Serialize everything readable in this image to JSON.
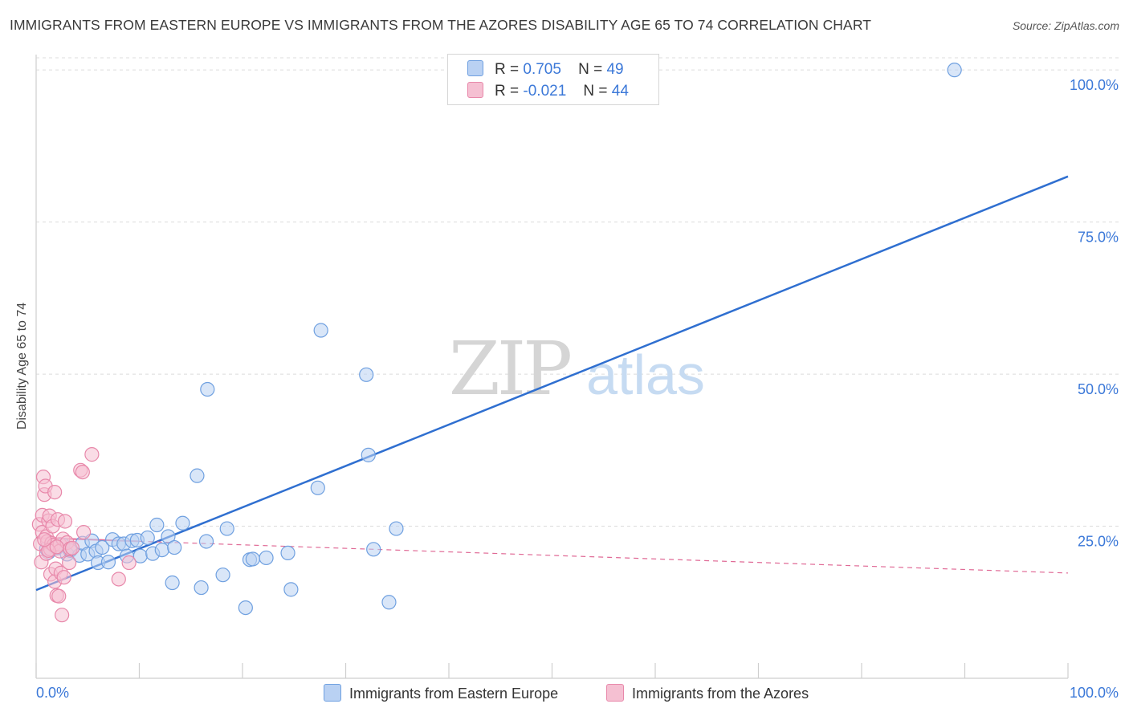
{
  "chart_data": {
    "type": "scatter",
    "title": "IMMIGRANTS FROM EASTERN EUROPE VS IMMIGRANTS FROM THE AZORES DISABILITY AGE 65 TO 74 CORRELATION CHART",
    "source": "Source: ZipAtlas.com",
    "xlabel": "",
    "ylabel": "Disability Age 65 to 74",
    "xlim": [
      0,
      100
    ],
    "ylim": [
      0,
      102
    ],
    "x_tick_labels": [
      "0.0%",
      "100.0%"
    ],
    "y_ticks": [
      {
        "value": 25,
        "label": "25.0%"
      },
      {
        "value": 50,
        "label": "50.0%"
      },
      {
        "value": 75,
        "label": "75.0%"
      },
      {
        "value": 100,
        "label": "100.0%"
      }
    ],
    "grid": true,
    "watermark": "ZIPatlas",
    "legend_stats": [
      {
        "r_label": "R =",
        "r_value": "0.705",
        "n_label": "N =",
        "n_value": "49"
      },
      {
        "r_label": "R =",
        "r_value": "-0.021",
        "n_label": "N =",
        "n_value": "44"
      }
    ],
    "series": [
      {
        "name": "Immigrants from Eastern Europe",
        "color": "#6fa0e0",
        "fill": "#b9d1f3",
        "line_color": "#2f6fd0",
        "trend": {
          "x": [
            0,
            100
          ],
          "y": [
            14.5,
            82.5
          ]
        },
        "points": [
          [
            1.0,
            21.3
          ],
          [
            1.2,
            20.7
          ],
          [
            2.0,
            21.4
          ],
          [
            2.6,
            21.9
          ],
          [
            3.0,
            20.4
          ],
          [
            3.3,
            21.0
          ],
          [
            4.2,
            20.2
          ],
          [
            4.5,
            22.2
          ],
          [
            5.0,
            20.4
          ],
          [
            5.4,
            22.6
          ],
          [
            5.8,
            20.9
          ],
          [
            6.0,
            19.0
          ],
          [
            6.4,
            21.5
          ],
          [
            7.0,
            19.1
          ],
          [
            7.4,
            22.8
          ],
          [
            8.0,
            22.1
          ],
          [
            8.5,
            22.1
          ],
          [
            8.8,
            20.1
          ],
          [
            9.3,
            22.6
          ],
          [
            9.8,
            22.7
          ],
          [
            10.1,
            20.1
          ],
          [
            10.8,
            23.1
          ],
          [
            11.3,
            20.5
          ],
          [
            11.7,
            25.2
          ],
          [
            12.2,
            21.1
          ],
          [
            12.8,
            23.3
          ],
          [
            13.4,
            21.5
          ],
          [
            14.2,
            25.5
          ],
          [
            13.2,
            15.7
          ],
          [
            15.6,
            33.3
          ],
          [
            16.0,
            14.9
          ],
          [
            16.5,
            22.5
          ],
          [
            16.6,
            47.5
          ],
          [
            18.5,
            24.6
          ],
          [
            18.1,
            17.0
          ],
          [
            20.3,
            11.6
          ],
          [
            20.7,
            19.5
          ],
          [
            21.0,
            19.6
          ],
          [
            22.3,
            19.8
          ],
          [
            24.7,
            14.6
          ],
          [
            24.4,
            20.6
          ],
          [
            27.3,
            31.3
          ],
          [
            27.6,
            57.2
          ],
          [
            32.0,
            49.9
          ],
          [
            32.2,
            36.7
          ],
          [
            32.7,
            21.2
          ],
          [
            34.2,
            12.5
          ],
          [
            34.9,
            24.6
          ],
          [
            89.0,
            100.0
          ]
        ]
      },
      {
        "name": "Immigrants from the Azores",
        "color": "#e888aa",
        "fill": "#f5c0d2",
        "line_color": "#e06a96",
        "trend": {
          "x": [
            0,
            100
          ],
          "y": [
            23.1,
            17.3
          ]
        },
        "points": [
          [
            0.3,
            25.3
          ],
          [
            0.4,
            22.1
          ],
          [
            0.5,
            19.1
          ],
          [
            0.6,
            26.8
          ],
          [
            0.6,
            24.0
          ],
          [
            0.7,
            33.1
          ],
          [
            0.8,
            30.2
          ],
          [
            0.9,
            31.6
          ],
          [
            1.0,
            23.3
          ],
          [
            1.0,
            20.5
          ],
          [
            1.1,
            22.5
          ],
          [
            1.2,
            25.9
          ],
          [
            1.3,
            26.7
          ],
          [
            1.4,
            21.2
          ],
          [
            1.4,
            17.1
          ],
          [
            1.5,
            22.2
          ],
          [
            1.6,
            25.0
          ],
          [
            1.7,
            21.9
          ],
          [
            1.8,
            15.9
          ],
          [
            1.8,
            30.6
          ],
          [
            1.9,
            18.0
          ],
          [
            2.0,
            13.6
          ],
          [
            2.1,
            26.1
          ],
          [
            2.2,
            13.5
          ],
          [
            2.3,
            22.0
          ],
          [
            2.3,
            20.9
          ],
          [
            2.4,
            17.3
          ],
          [
            2.5,
            10.4
          ],
          [
            2.6,
            22.9
          ],
          [
            2.7,
            16.6
          ],
          [
            2.8,
            25.8
          ],
          [
            3.0,
            22.3
          ],
          [
            3.2,
            19.0
          ],
          [
            3.3,
            21.3
          ],
          [
            3.5,
            21.4
          ],
          [
            4.3,
            34.2
          ],
          [
            4.5,
            33.9
          ],
          [
            4.6,
            24.0
          ],
          [
            5.4,
            36.8
          ],
          [
            8.0,
            16.3
          ],
          [
            9.0,
            19.0
          ],
          [
            1.2,
            21.0
          ],
          [
            0.8,
            22.8
          ],
          [
            2.0,
            21.6
          ]
        ]
      }
    ]
  }
}
